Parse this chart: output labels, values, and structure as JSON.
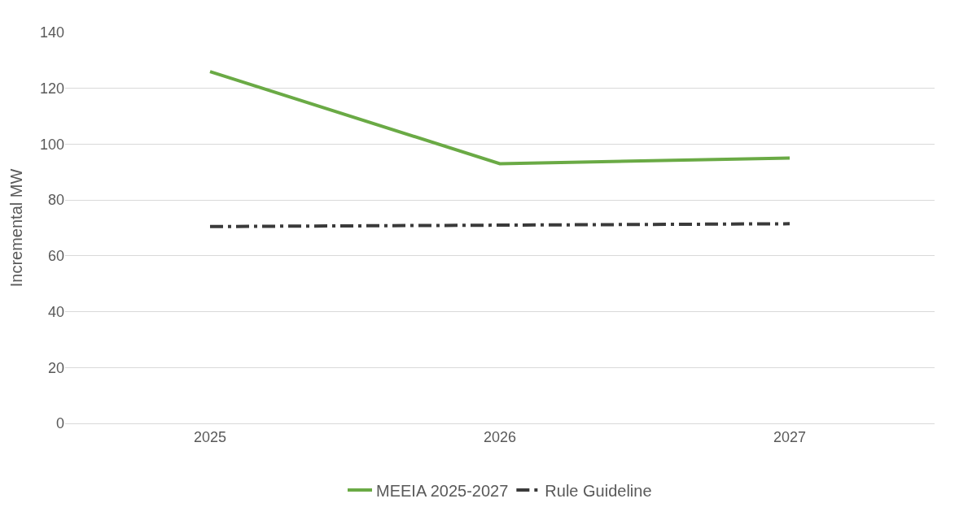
{
  "chart_data": {
    "type": "line",
    "ylabel": "Incremental MW",
    "categories": [
      "2025",
      "2026",
      "2027"
    ],
    "series": [
      {
        "name": "MEEIA 2025-2027",
        "color": "#6aaa45",
        "values": [
          126,
          93,
          95
        ],
        "line_style": "solid"
      },
      {
        "name": "Rule Guideline",
        "color": "#3a3a3a",
        "values": [
          70.5,
          71,
          71.5
        ],
        "line_style": "dashed"
      }
    ],
    "ylim": [
      0,
      140
    ],
    "yticks": [
      0,
      20,
      40,
      60,
      80,
      100,
      120,
      140
    ],
    "grid": "y",
    "legend": "bottom",
    "marker": "none"
  }
}
